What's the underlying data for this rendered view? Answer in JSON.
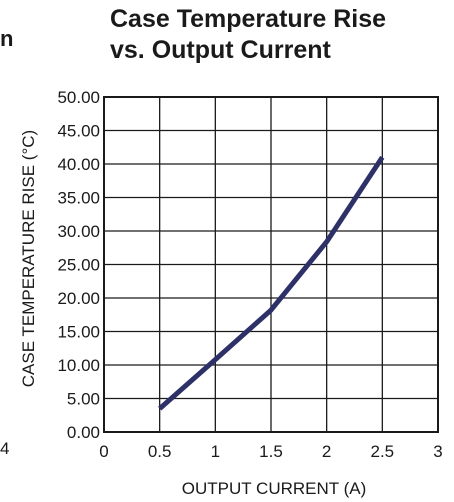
{
  "chart_data": {
    "type": "line",
    "title_lines": [
      "Case Temperature Rise",
      "vs. Output Current"
    ],
    "xlabel": "OUTPUT CURRENT (A)",
    "ylabel": "CASE TEMPERATURE RISE (°C)",
    "xlim": [
      0,
      3
    ],
    "ylim": [
      0,
      50
    ],
    "x_ticks": [
      "0",
      "0.5",
      "1",
      "1.5",
      "2",
      "2.5",
      "3"
    ],
    "y_ticks": [
      "0.00",
      "5.00",
      "10.00",
      "15.00",
      "20.00",
      "25.00",
      "30.00",
      "35.00",
      "40.00",
      "45.00",
      "50.00"
    ],
    "grid": true,
    "series": [
      {
        "color": "#2e3168",
        "x": [
          0.5,
          1.0,
          1.5,
          2.0,
          2.5
        ],
        "y": [
          3.5,
          10.8,
          18.2,
          28.4,
          41.0
        ]
      }
    ]
  },
  "fragments": {
    "left_cut_top": "n",
    "left_cut_bottom": "4"
  }
}
